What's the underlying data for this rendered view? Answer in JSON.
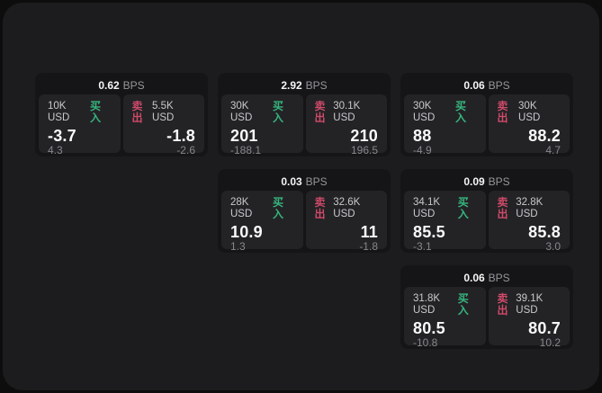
{
  "labels": {
    "bps_unit": "BPS",
    "buy": "买入",
    "sell": "卖出"
  },
  "colors": {
    "buy": "#37b57e",
    "sell": "#cf4a69",
    "panel_bg": "#1c1c1e",
    "card_bg": "#151517",
    "cell_bg": "#232326"
  },
  "cards": [
    {
      "bps": "0.62",
      "buy": {
        "size": "10K USD",
        "value": "-3.7",
        "sub": "4.3"
      },
      "sell": {
        "size": "5.5K USD",
        "value": "-1.8",
        "sub": "-2.6"
      }
    },
    {
      "bps": "2.92",
      "buy": {
        "size": "30K USD",
        "value": "201",
        "sub": "-188.1"
      },
      "sell": {
        "size": "30.1K USD",
        "value": "210",
        "sub": "196.5"
      }
    },
    {
      "bps": "0.06",
      "buy": {
        "size": "30K USD",
        "value": "88",
        "sub": "-4.9"
      },
      "sell": {
        "size": "30K USD",
        "value": "88.2",
        "sub": "4.7"
      }
    },
    {
      "bps": "0.03",
      "buy": {
        "size": "28K USD",
        "value": "10.9",
        "sub": "1.3"
      },
      "sell": {
        "size": "32.6K USD",
        "value": "11",
        "sub": "-1.8"
      }
    },
    {
      "bps": "0.09",
      "buy": {
        "size": "34.1K USD",
        "value": "85.5",
        "sub": "-3.1"
      },
      "sell": {
        "size": "32.8K USD",
        "value": "85.8",
        "sub": "3.0"
      }
    },
    {
      "bps": "0.06",
      "buy": {
        "size": "31.8K USD",
        "value": "80.5",
        "sub": "-10.8"
      },
      "sell": {
        "size": "39.1K USD",
        "value": "80.7",
        "sub": "10.2"
      }
    }
  ]
}
